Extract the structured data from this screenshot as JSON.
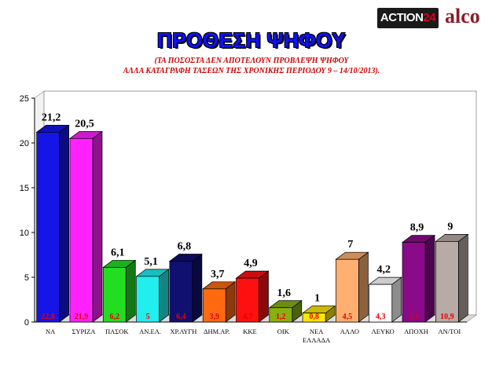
{
  "header": {
    "logo_action_main": "ACTION",
    "logo_action_num": "24",
    "logo_alco": "alco",
    "title": "ΠΡΟΘΕΣΗ ΨΗΦΟΥ",
    "subtitle_line1": "(ΤΑ ΠΟΣΟΣΤΑ ΔΕΝ ΑΠΟΤΕΛΟΥΝ ΠΡΟΒΛΕΨΗ ΨΗΦΟΥ",
    "subtitle_line2": "ΑΛΛΑ ΚΑΤΑΓΡΑΦΗ ΤΑΣΕΩΝ ΤΗΣ ΧΡΟΝΙΚΗΣ ΠΕΡΙΟΔΟΥ 9 – 14/10/2013)."
  },
  "chart_data": {
    "type": "bar",
    "categories": [
      "ΝΑ",
      "ΣΥΡΙΖΑ",
      "ΠΑΣΟΚ",
      "ΑΝ.ΕΛ.",
      "ΧΡ.ΑΥΓΗ",
      "ΔΗΜ.ΑΡ.",
      "ΚΚΕ",
      "ΟΙΚ",
      "ΝΕΑ ΕΛΛΑΔΑ",
      "ΑΛΛΟ",
      "ΛΕΥΚΟ",
      "ΑΠΟΧΗ",
      "ΑΝ/ΤΟΙ"
    ],
    "values": [
      21.2,
      20.5,
      6.1,
      5.1,
      6.8,
      3.7,
      4.9,
      1.6,
      1,
      7,
      4.2,
      8.9,
      9
    ],
    "value_labels": [
      "21,2",
      "20,5",
      "6,1",
      "5,1",
      "6,8",
      "3,7",
      "4,9",
      "1,6",
      "1",
      "7",
      "4,2",
      "8,9",
      "9"
    ],
    "previous_labels": [
      "22,8",
      "21,9",
      "6,2",
      "5",
      "6,4",
      "3,9",
      "4,7",
      "1,2",
      "0,8",
      "4,5",
      "4,3",
      "7,4",
      "10,9"
    ],
    "bar_colors": [
      "#1515e8",
      "#ff22ff",
      "#22dd22",
      "#22eeee",
      "#101070",
      "#ff6a10",
      "#ff1010",
      "#88b010",
      "#ffe800",
      "#ffb070",
      "#ffffff",
      "#8a0a8a",
      "#b8aaa4"
    ],
    "ylim": [
      0,
      25
    ],
    "yticks": [
      0,
      5,
      10,
      15,
      20,
      25
    ],
    "grid": false,
    "xlabel": "",
    "ylabel": ""
  }
}
